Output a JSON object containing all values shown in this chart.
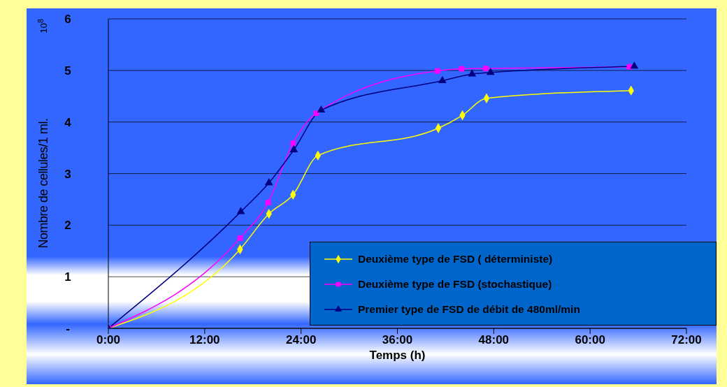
{
  "chart_data": {
    "type": "line",
    "xlabel": "Temps (h)",
    "ylabel": "Nombre de cellules/1 ml.",
    "annotations": [
      "10$^{8}$"
    ],
    "xlim": [
      0,
      72
    ],
    "xticks": [
      {
        "value": 0,
        "label": "0:00"
      },
      {
        "value": 12,
        "label": "12:00"
      },
      {
        "value": 24,
        "label": "24:00"
      },
      {
        "value": 36,
        "label": "36:00"
      },
      {
        "value": 48,
        "label": "48:00"
      },
      {
        "value": 60,
        "label": "60:00"
      },
      {
        "value": 72,
        "label": "72:00"
      }
    ],
    "ylim": [
      0,
      6
    ],
    "yticks": [
      {
        "value": 0,
        "label": "-"
      },
      1,
      2,
      3,
      4,
      5,
      6
    ],
    "grid": "y",
    "legend": "bottom right",
    "series": [
      {
        "name": "Deuxième type de FSD ( déterministe)",
        "color": "#ffff00",
        "marker": "diamond",
        "x": [
          0,
          16.4,
          20.0,
          23.0,
          26.1,
          41.1,
          44.1,
          47.1,
          65.1
        ],
        "values": [
          0,
          1.53,
          2.22,
          2.59,
          3.35,
          3.88,
          4.13,
          4.46,
          4.61
        ]
      },
      {
        "name": "Deuxième type de FSD (stochastique)",
        "color": "#ff00ff",
        "marker": "square",
        "x": [
          0,
          16.4,
          19.9,
          23.0,
          25.9,
          41.0,
          44.0,
          47.0,
          64.9
        ],
        "values": [
          0,
          1.75,
          2.44,
          3.59,
          4.17,
          4.99,
          5.03,
          5.04,
          5.07
        ]
      },
      {
        "name": "Premier type de FSD de débit de 480ml/min",
        "color": "#000080",
        "marker": "triangle",
        "x": [
          0,
          16.5,
          20.0,
          23.1,
          26.5,
          41.6,
          45.3,
          47.6,
          65.5
        ],
        "values": [
          0,
          2.26,
          2.82,
          3.46,
          4.23,
          4.8,
          4.93,
          4.96,
          5.08
        ]
      }
    ]
  }
}
